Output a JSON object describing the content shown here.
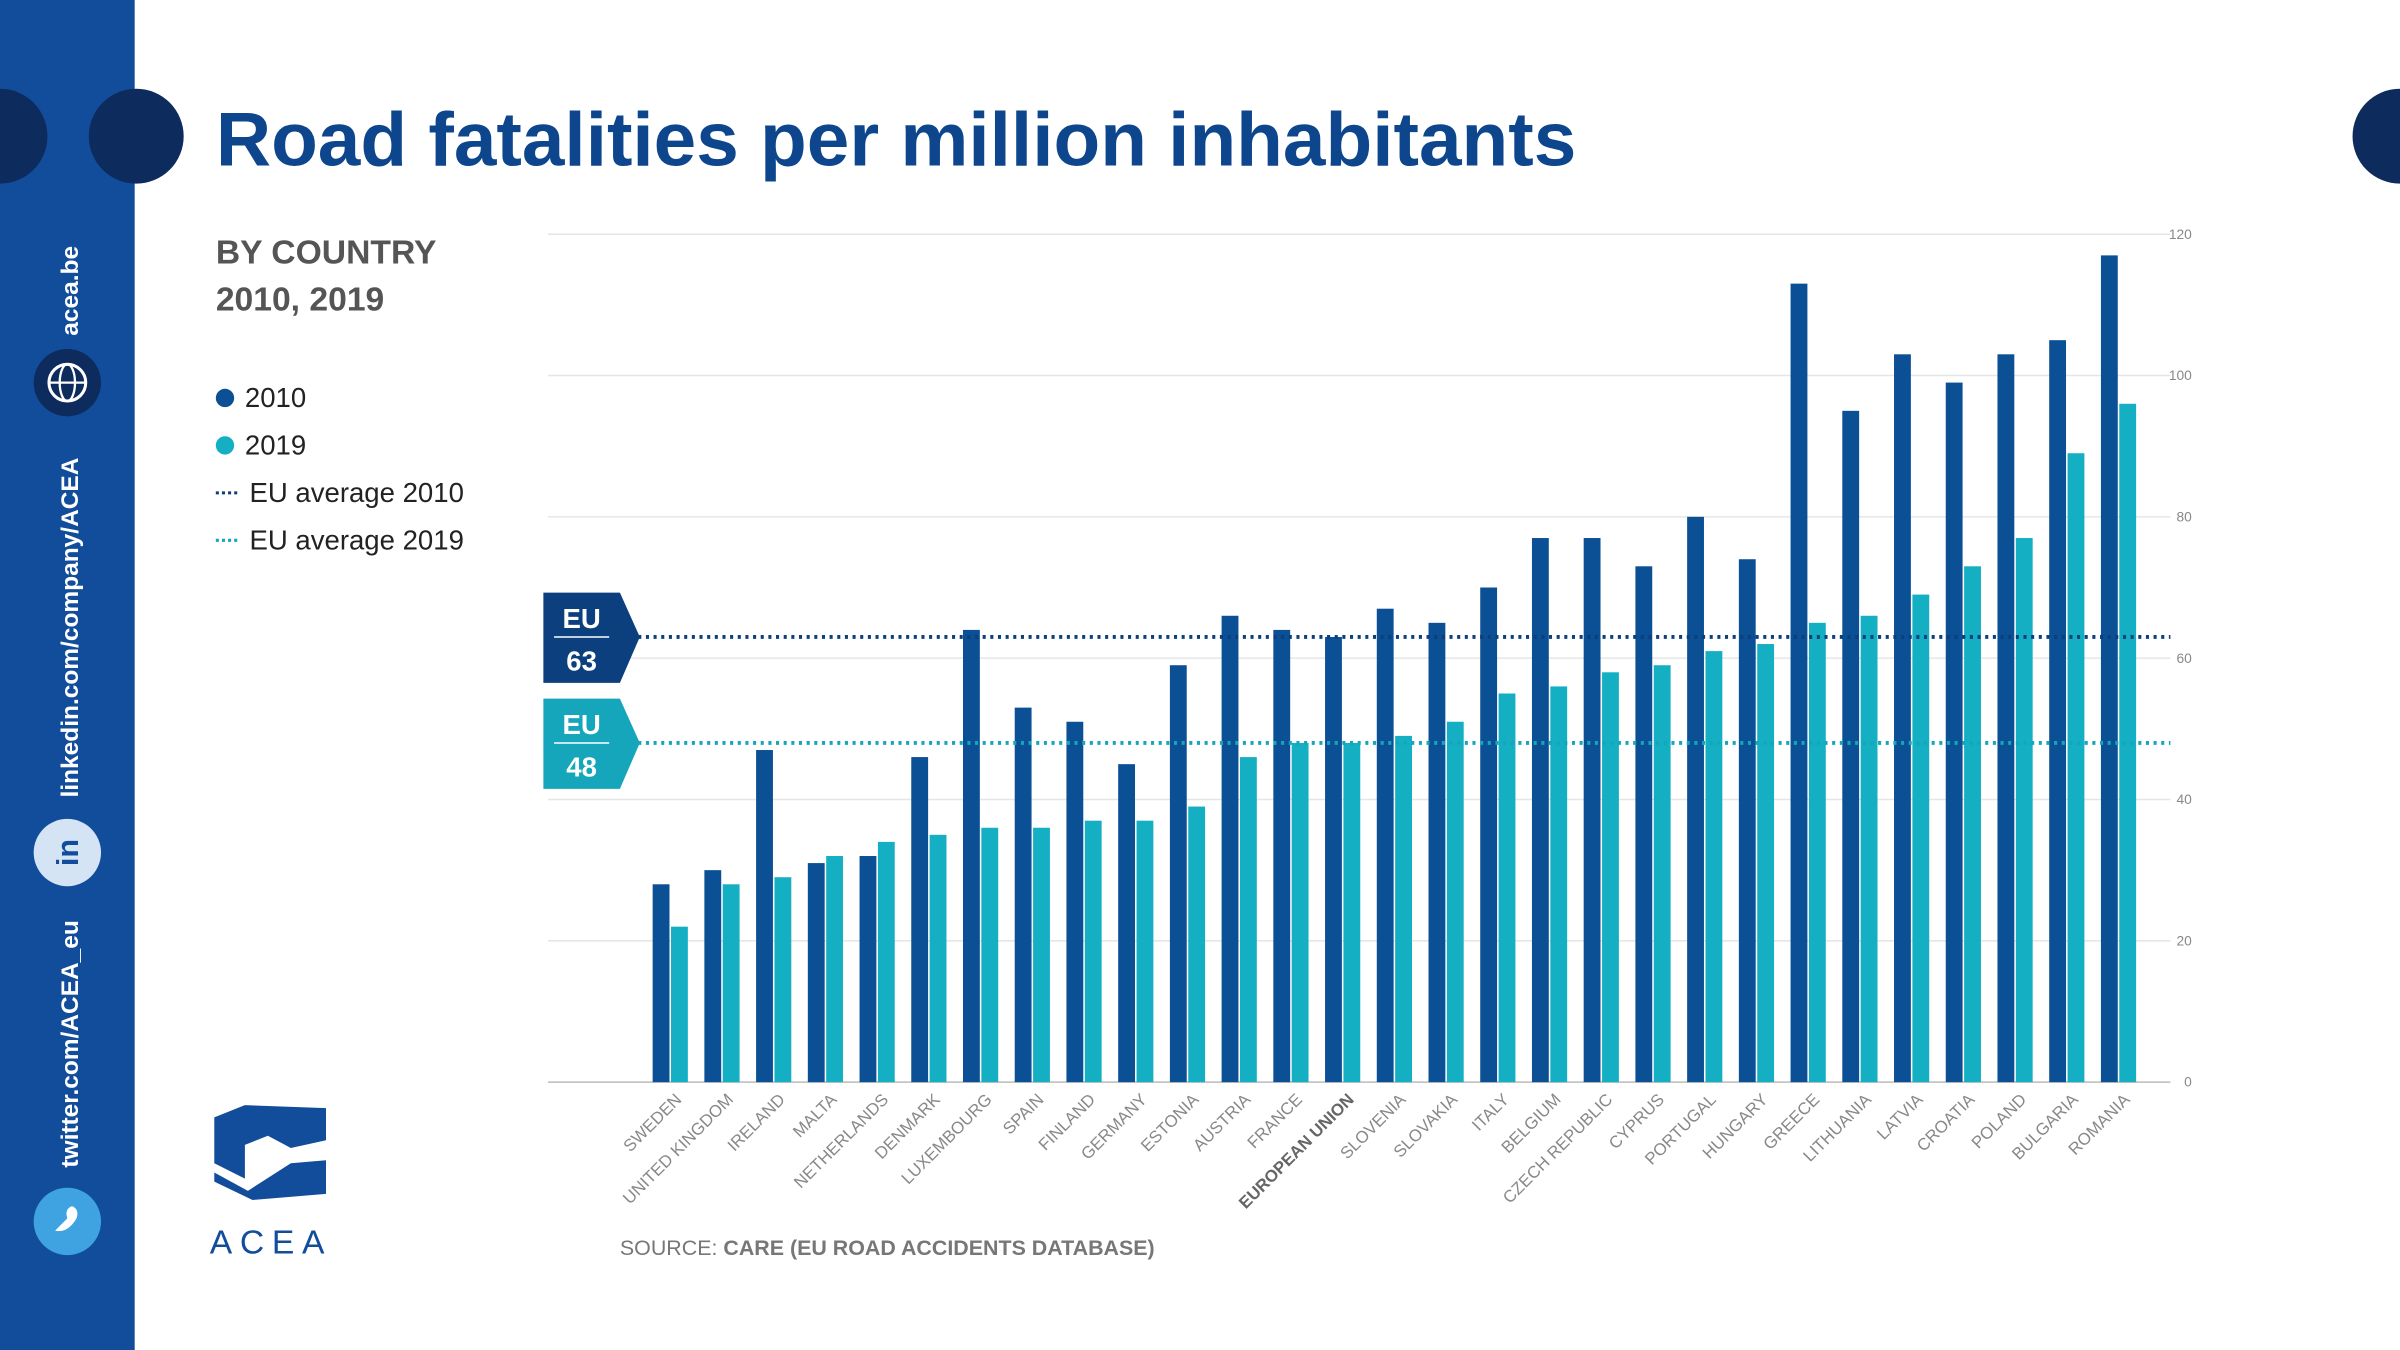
{
  "chart_data": {
    "type": "bar",
    "title": "Road fatalities per million inhabitants",
    "subtitle": [
      "BY COUNTRY",
      "2010, 2019"
    ],
    "categories": [
      "SWEDEN",
      "UNITED KINGDOM",
      "IRELAND",
      "MALTA",
      "NETHERLANDS",
      "DENMARK",
      "LUXEMBOURG",
      "SPAIN",
      "FINLAND",
      "GERMANY",
      "ESTONIA",
      "AUSTRIA",
      "FRANCE",
      "EUROPEAN UNION",
      "SLOVENIA",
      "SLOVAKIA",
      "ITALY",
      "BELGIUM",
      "CZECH REPUBLIC",
      "CYPRUS",
      "PORTUGAL",
      "HUNGARY",
      "GREECE",
      "LITHUANIA",
      "LATVIA",
      "CROATIA",
      "POLAND",
      "BULGARIA",
      "ROMANIA"
    ],
    "highlight_index": 13,
    "series": [
      {
        "name": "2010",
        "color": "#0b4f94",
        "values": [
          28,
          30,
          47,
          31,
          32,
          46,
          64,
          53,
          51,
          45,
          59,
          66,
          64,
          63,
          67,
          65,
          70,
          77,
          77,
          73,
          80,
          74,
          113,
          95,
          103,
          99,
          103,
          105,
          117
        ]
      },
      {
        "name": "2019",
        "color": "#15afc4",
        "values": [
          22,
          28,
          29,
          32,
          34,
          35,
          36,
          36,
          37,
          37,
          39,
          46,
          48,
          48,
          49,
          51,
          55,
          56,
          58,
          59,
          61,
          62,
          65,
          66,
          69,
          73,
          77,
          89,
          96
        ]
      }
    ],
    "reference_lines": [
      {
        "name": "EU average 2010",
        "label": "EU",
        "value": 63,
        "color": "#0b3f7e"
      },
      {
        "name": "EU average 2019",
        "label": "EU",
        "value": 48,
        "color": "#15a6bb"
      }
    ],
    "ylim": [
      0,
      120
    ],
    "yticks": [
      0,
      20,
      40,
      60,
      80,
      100,
      120
    ],
    "grid": true,
    "source_label": "SOURCE:",
    "source": "CARE (EU ROAD ACCIDENTS DATABASE)"
  },
  "sidebar": {
    "website": "acea.be",
    "linkedin": "linkedin.com/company/ACEA",
    "twitter": "twitter.com/ACEA_eu"
  },
  "logo": {
    "text": "ACEA"
  }
}
